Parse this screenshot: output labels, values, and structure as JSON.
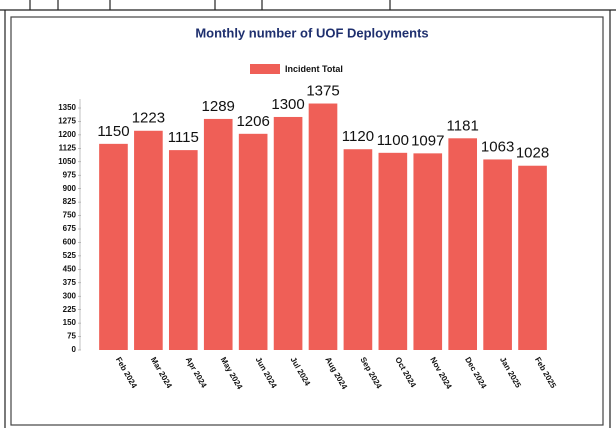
{
  "chart_data": {
    "type": "bar",
    "title": "Monthly number of UOF Deployments",
    "categories": [
      "Feb 2024",
      "Mar 2024",
      "Apr 2024",
      "May 2024",
      "Jun 2024",
      "Jul 2024",
      "Aug 2024",
      "Sep 2024",
      "Oct 2024",
      "Nov 2024",
      "Dec 2024",
      "Jan 2025",
      "Feb 2025"
    ],
    "series": [
      {
        "name": "Incident Total",
        "color": "#ef5f57",
        "values": [
          1150,
          1223,
          1115,
          1289,
          1206,
          1300,
          1375,
          1120,
          1100,
          1097,
          1181,
          1063,
          1028
        ]
      }
    ],
    "ylim": [
      0,
      1400
    ],
    "yticks": [
      0,
      75,
      150,
      225,
      300,
      375,
      450,
      525,
      600,
      675,
      750,
      825,
      900,
      975,
      1050,
      1125,
      1200,
      1275,
      1350
    ],
    "grid": false,
    "legend": "top"
  }
}
